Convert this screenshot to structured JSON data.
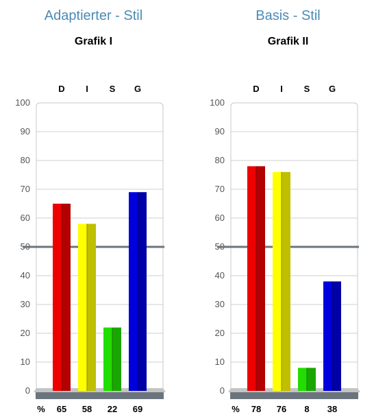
{
  "chart_data": [
    {
      "type": "bar",
      "title": "Adaptierter - Stil",
      "subtitle": "Grafik I",
      "categories": [
        "D",
        "I",
        "S",
        "G"
      ],
      "values": [
        65,
        58,
        22,
        69
      ],
      "value_row_label": "%",
      "ylim": [
        0,
        100
      ],
      "yticks": [
        0,
        10,
        20,
        30,
        40,
        50,
        60,
        70,
        80,
        90,
        100
      ],
      "reference_line": 50,
      "grid": true,
      "colors": [
        "#ee0000",
        "#ffff00",
        "#22dd00",
        "#0000dd"
      ]
    },
    {
      "type": "bar",
      "title": "Basis - Stil",
      "subtitle": "Grafik II",
      "categories": [
        "D",
        "I",
        "S",
        "G"
      ],
      "values": [
        78,
        76,
        8,
        38
      ],
      "value_row_label": "%",
      "ylim": [
        0,
        100
      ],
      "yticks": [
        0,
        10,
        20,
        30,
        40,
        50,
        60,
        70,
        80,
        90,
        100
      ],
      "reference_line": 50,
      "grid": true,
      "colors": [
        "#ee0000",
        "#ffff00",
        "#22dd00",
        "#0000dd"
      ]
    }
  ]
}
